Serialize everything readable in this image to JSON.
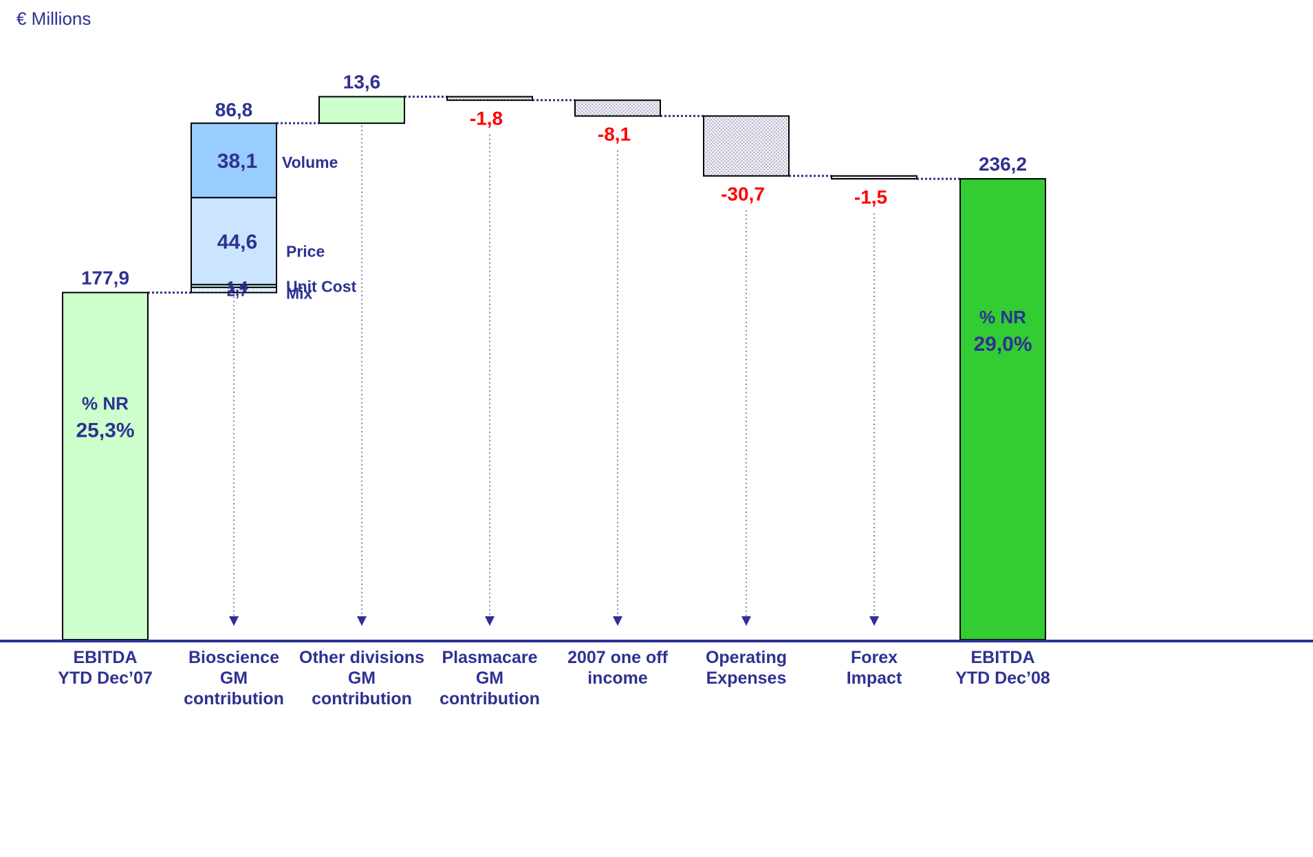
{
  "unit_label": "€ Millions",
  "colors": {
    "navy": "#2E3192",
    "negative_text": "#FF0000",
    "start_fill": "#CCFFCC",
    "end_fill": "#33CC33",
    "other_fill": "#CCFFCC",
    "volume_fill": "#99CCFF",
    "price_fill": "#CCE5FF",
    "unit_cost_fill": "#CCFFFF",
    "mix_fill": "#E6F2FF",
    "negative_fill": "#E6E6F0"
  },
  "chart_data": {
    "type": "waterfall",
    "title": "",
    "ylabel": "€ Millions",
    "categories": [
      "EBITDA\nYTD Dec’07",
      "Bioscience\nGM\ncontribution",
      "Other divisions\nGM\ncontribution",
      "Plasmacare\nGM\ncontribution",
      "2007 one off\nincome",
      "Operating\nExpenses",
      "Forex\nImpact",
      "EBITDA\nYTD Dec’08"
    ],
    "bars": [
      {
        "kind": "total",
        "value": 177.9,
        "label": "177,9",
        "inner_label": [
          "% NR",
          "25,3%"
        ]
      },
      {
        "kind": "delta",
        "value": 86.8,
        "label": "86,8",
        "components": [
          {
            "name": "Mix",
            "value": 2.7,
            "label": "2,7"
          },
          {
            "name": "Unit Cost",
            "value": 1.4,
            "label": "1,4"
          },
          {
            "name": "Price",
            "value": 44.6,
            "label": "44,6"
          },
          {
            "name": "Volume",
            "value": 38.1,
            "label": "38,1"
          }
        ]
      },
      {
        "kind": "delta",
        "value": 13.6,
        "label": "13,6"
      },
      {
        "kind": "delta",
        "value": -1.8,
        "label": "-1,8"
      },
      {
        "kind": "delta",
        "value": -8.1,
        "label": "-8,1"
      },
      {
        "kind": "delta",
        "value": -30.7,
        "label": "-30,7"
      },
      {
        "kind": "delta",
        "value": -1.5,
        "label": "-1,5"
      },
      {
        "kind": "total",
        "value": 236.2,
        "label": "236,2",
        "inner_label": [
          "% NR",
          "29,0%"
        ]
      }
    ],
    "ylim": [
      0,
      278
    ],
    "grid": false,
    "legend": "none"
  }
}
